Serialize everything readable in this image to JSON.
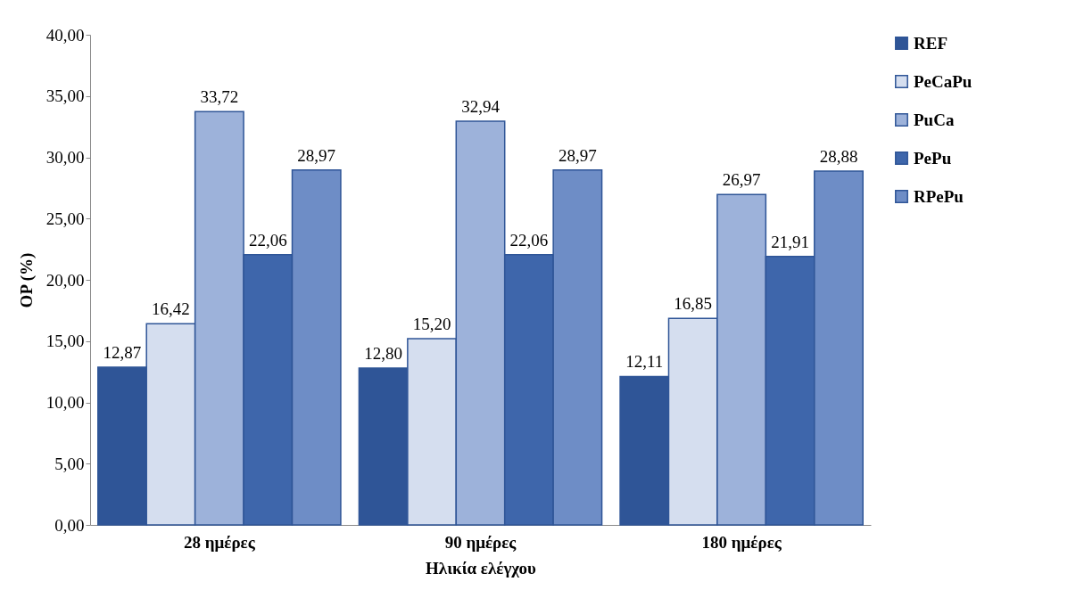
{
  "chart_data": {
    "type": "bar",
    "xlabel": "Ηλικία ελέγχου",
    "ylabel": "OP (%)",
    "categories": [
      "28 ημέρες",
      "90 ημέρες",
      "180 ημέρες"
    ],
    "series": [
      {
        "name": "REF",
        "color": "#2f5597",
        "values": [
          12.87,
          12.8,
          12.11
        ],
        "value_labels": [
          "12,87",
          "12,80",
          "12,11"
        ]
      },
      {
        "name": "PeCaPu",
        "color": "#d5deef",
        "values": [
          16.42,
          15.2,
          16.85
        ],
        "value_labels": [
          "16,42",
          "15,20",
          "16,85"
        ]
      },
      {
        "name": "PuCa",
        "color": "#9db2da",
        "values": [
          33.72,
          32.94,
          26.97
        ],
        "value_labels": [
          "33,72",
          "32,94",
          "26,97"
        ]
      },
      {
        "name": "PePu",
        "color": "#3e66ab",
        "values": [
          22.06,
          22.06,
          21.91
        ],
        "value_labels": [
          "22,06",
          "22,06",
          "21,91"
        ]
      },
      {
        "name": "RPePu",
        "color": "#6e8dc6",
        "values": [
          28.97,
          28.97,
          28.88
        ],
        "value_labels": [
          "28,97",
          "28,97",
          "28,88"
        ]
      }
    ],
    "ylim": [
      0,
      40
    ],
    "yticks": [
      {
        "value": 0,
        "label": "0,00"
      },
      {
        "value": 5,
        "label": "5,00"
      },
      {
        "value": 10,
        "label": "10,00"
      },
      {
        "value": 15,
        "label": "15,00"
      },
      {
        "value": 20,
        "label": "20,00"
      },
      {
        "value": 25,
        "label": "25,00"
      },
      {
        "value": 30,
        "label": "30,00"
      },
      {
        "value": 35,
        "label": "35,00"
      },
      {
        "value": 40,
        "label": "40,00"
      }
    ],
    "grid": false,
    "legend": "top right"
  }
}
